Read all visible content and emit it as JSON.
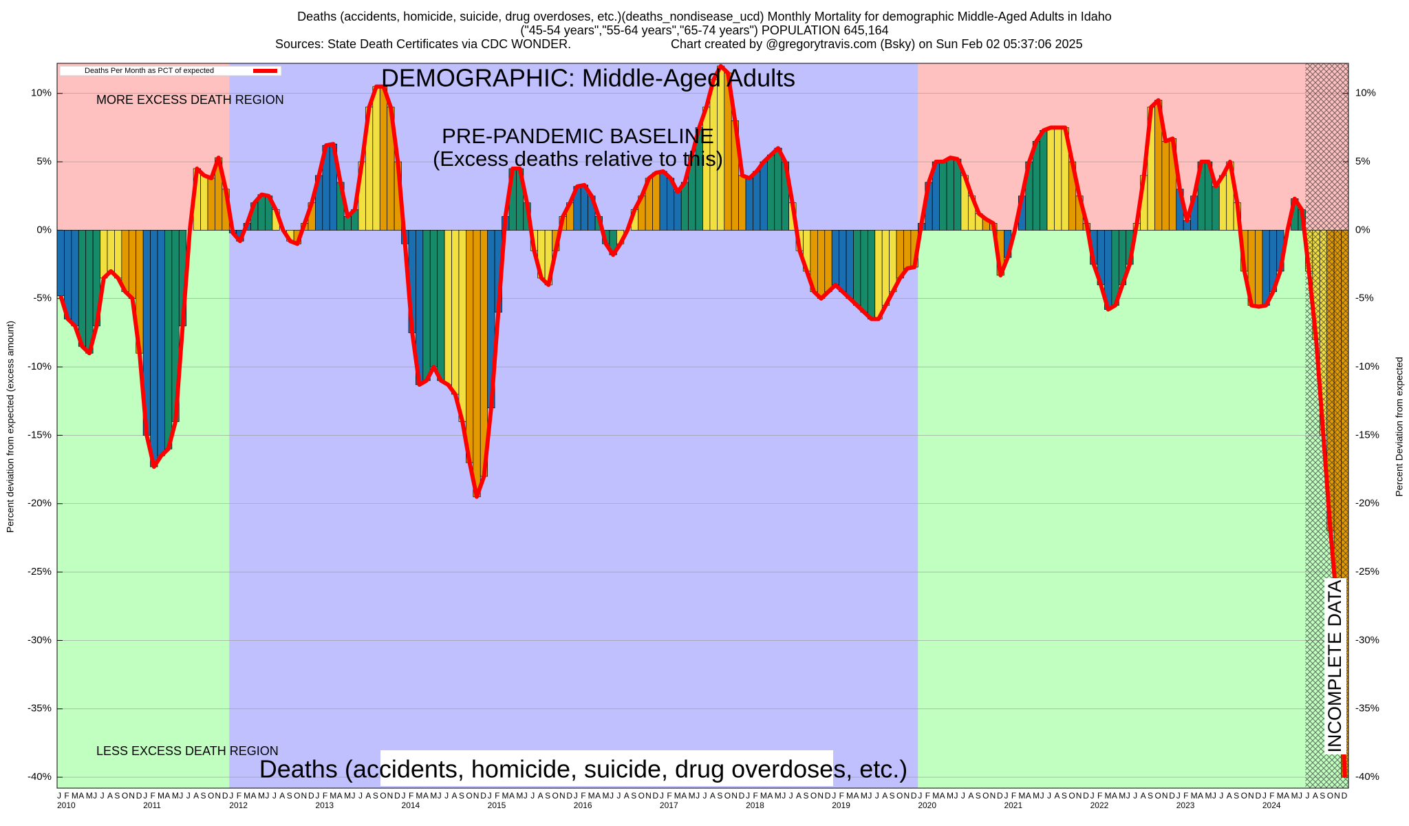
{
  "chart_data": {
    "type": "bar",
    "title": "Deaths (accidents, homicide, suicide, drug overdoses, etc.)(deaths_nondisease_ucd) Monthly Mortality for demographic Middle-Aged Adults in Idaho",
    "subtitle": "(\"45-54 years\",\"55-64 years\",\"65-74 years\") POPULATION 645,164",
    "sources": "Sources: State Death Certificates via CDC WONDER.",
    "credit": "Chart created by @gregorytravis.com (Bsky) on Sun Feb 02 05:37:06 2025",
    "ylabel": "Percent deviation from expected (excess amount)",
    "y2label": "Percent Deviation from expected",
    "annotations": [
      "DEMOGRAPHIC: Middle-Aged Adults",
      "MORE EXCESS DEATH REGION",
      "LESS EXCESS DEATH REGION",
      "PRE-PANDEMIC BASELINE",
      "(Excess deaths relative to this)",
      "INCOMPLETE DATA",
      "Deaths (accidents, homicide, suicide, drug overdoses, etc.)"
    ],
    "categories": [
      "J",
      "F",
      "M",
      "A",
      "M",
      "J",
      "J",
      "A",
      "S",
      "O",
      "N",
      "D",
      "J",
      "F",
      "M",
      "A",
      "M",
      "J",
      "J",
      "A",
      "S",
      "O",
      "N",
      "D",
      "J",
      "F",
      "M",
      "A",
      "M",
      "J",
      "J",
      "A",
      "S",
      "O",
      "N",
      "D",
      "J",
      "F",
      "M",
      "A",
      "M",
      "J",
      "J",
      "A",
      "S",
      "O",
      "N",
      "D",
      "J",
      "F",
      "M",
      "A",
      "M",
      "J",
      "J",
      "A",
      "S",
      "O",
      "N",
      "D",
      "J",
      "F",
      "M",
      "A",
      "M",
      "J",
      "J",
      "A",
      "S",
      "O",
      "N",
      "D",
      "J",
      "F",
      "M",
      "A",
      "M",
      "J",
      "J",
      "A",
      "S",
      "O",
      "N",
      "D",
      "J",
      "F",
      "M",
      "A",
      "M",
      "J",
      "J",
      "A",
      "S",
      "O",
      "N",
      "D",
      "J",
      "F",
      "M",
      "A",
      "M",
      "J",
      "J",
      "A",
      "S",
      "O",
      "N",
      "D",
      "J",
      "F",
      "M",
      "A",
      "M",
      "J",
      "J",
      "A",
      "S",
      "O",
      "N",
      "D",
      "J",
      "F",
      "M",
      "A",
      "M",
      "J",
      "J",
      "A",
      "S",
      "O",
      "N",
      "D",
      "J",
      "F",
      "M",
      "A",
      "M",
      "J",
      "J",
      "A",
      "S",
      "O",
      "N",
      "D",
      "J",
      "F",
      "M",
      "A",
      "M",
      "J",
      "J",
      "A",
      "S",
      "O",
      "N",
      "D",
      "J",
      "F",
      "M",
      "A",
      "M",
      "J",
      "J",
      "A",
      "S",
      "O",
      "N",
      "D",
      "J",
      "F",
      "M",
      "A",
      "M",
      "J",
      "J",
      "A",
      "S",
      "O",
      "N",
      "D"
    ],
    "years": [
      "2010",
      "2011",
      "2012",
      "2013",
      "2014",
      "2015",
      "2016",
      "2017",
      "2018",
      "2019",
      "2020",
      "2021",
      "2022",
      "2023",
      "2024"
    ],
    "series": [
      {
        "name": "Deaths Per Month as PCT of expected",
        "color": "#ff0000",
        "values": [
          -4.8,
          -6.5,
          -7,
          -8.5,
          -9,
          -7,
          -3.5,
          -3,
          -3.5,
          -4.5,
          -5,
          -9,
          -15,
          -17.3,
          -16.5,
          -16,
          -14,
          -7,
          0,
          4.5,
          4,
          3.8,
          5.3,
          3,
          -0.2,
          -0.8,
          0.5,
          2,
          2.6,
          2.5,
          1.5,
          0,
          -0.8,
          -1,
          0.5,
          2,
          4,
          6.2,
          6.3,
          3.5,
          1,
          1.5,
          5,
          9,
          10.5,
          10.5,
          9,
          5,
          -1,
          -7.5,
          -11.3,
          -11,
          -10,
          -11,
          -11.3,
          -12,
          -14,
          -17,
          -19.5,
          -18,
          -13,
          -6,
          1,
          4.5,
          4.5,
          2,
          -1.5,
          -3.5,
          -4,
          -1.5,
          1,
          2,
          3.2,
          3.3,
          2.5,
          1,
          -1,
          -1.8,
          -1,
          0,
          1.5,
          2.5,
          3.8,
          4.2,
          4.3,
          3.8,
          2.8,
          3.5,
          5.5,
          7.5,
          9,
          11,
          12,
          11.5,
          8,
          4,
          3.8,
          4.3,
          5,
          5.5,
          6,
          5,
          2,
          -1.5,
          -3,
          -4.5,
          -5,
          -4.5,
          -4,
          -4.5,
          -5,
          -5.5,
          -6,
          -6.5,
          -6.5,
          -5.5,
          -4.5,
          -3.5,
          -2.8,
          -2.7,
          0.5,
          3.5,
          5,
          5,
          5.3,
          5.2,
          4,
          2.5,
          1.2,
          0.8,
          0.5,
          -3.3,
          -2,
          0,
          2.5,
          5,
          6.5,
          7.3,
          7.5,
          7.5,
          7.5,
          5,
          2.5,
          0.5,
          -2.5,
          -4,
          -5.8,
          -5.5,
          -4,
          -2.5,
          0.5,
          4,
          9,
          9.5,
          6.5,
          6.7,
          3,
          0.7,
          2.5,
          5,
          5,
          3.2,
          4,
          5,
          2,
          -3,
          -5.5,
          -5.6,
          -5.5,
          -4.5,
          -3,
          0,
          2.3,
          1.5,
          -3,
          -8,
          -15,
          -22,
          -28,
          -40
        ]
      }
    ],
    "season_colors": [
      "#1a6fb0",
      "#178a6a",
      "#f2e040",
      "#e39a00"
    ],
    "ylim": [
      -40.8,
      12.2
    ],
    "yticks": [
      {
        "value": 10,
        "label": "10%"
      },
      {
        "value": 5,
        "label": "5%"
      },
      {
        "value": 0,
        "label": "0%"
      },
      {
        "value": -5,
        "label": "-5%"
      },
      {
        "value": -10,
        "label": "-10%"
      },
      {
        "value": -15,
        "label": "-15%"
      },
      {
        "value": -20,
        "label": "-20%"
      },
      {
        "value": -25,
        "label": "-25%"
      },
      {
        "value": -30,
        "label": "-30%"
      },
      {
        "value": -35,
        "label": "-35%"
      },
      {
        "value": -40,
        "label": "-40%"
      }
    ],
    "y2lim": [
      -40.8,
      12.2
    ],
    "y2ticks": [
      {
        "value": 10,
        "label": "10%"
      },
      {
        "value": 5,
        "label": "5%"
      },
      {
        "value": 0,
        "label": "0%"
      },
      {
        "value": -5,
        "label": "-5%"
      },
      {
        "value": -10,
        "label": "-10%"
      },
      {
        "value": -15,
        "label": "-15%"
      },
      {
        "value": -20,
        "label": "-20%"
      },
      {
        "value": -25,
        "label": "-25%"
      },
      {
        "value": -30,
        "label": "-30%"
      },
      {
        "value": -35,
        "label": "-35%"
      },
      {
        "value": -40,
        "label": "-40%"
      }
    ],
    "grid": true,
    "legend": "upper left"
  }
}
